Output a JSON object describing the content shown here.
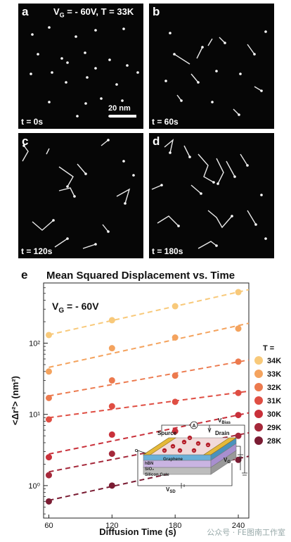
{
  "panels": [
    {
      "label": "a",
      "time": "t = 0s",
      "header": "V",
      "header_sub": "G",
      "header_rest": " = - 60V, T = 33K",
      "scale": "20 nm"
    },
    {
      "label": "b",
      "time": "t = 60s"
    },
    {
      "label": "c",
      "time": "t = 120s"
    },
    {
      "label": "d",
      "time": "t = 180s"
    }
  ],
  "chart_data": {
    "type": "scatter",
    "panel_label": "e",
    "title": "Mean Squared Displacement vs. Time",
    "annotation": "V = - 60V",
    "annotation_main": "V",
    "annotation_sub": "G",
    "annotation_rest": " = - 60V",
    "xlabel": "Diffusion Time (s)",
    "ylabel": "<Δr²> (nm²)",
    "x_ticks": [
      60,
      120,
      180,
      240
    ],
    "y_ticks": [
      "10⁰",
      "10¹",
      "10²"
    ],
    "y_scale": "log",
    "xlim": [
      55,
      250
    ],
    "ylim": [
      0.35,
      700
    ],
    "legend_title": "T =",
    "legend_position": "right",
    "x": [
      60,
      120,
      180,
      240
    ],
    "series": [
      {
        "name": "34K",
        "color": "#F8C97A",
        "values": [
          130,
          210,
          330,
          520
        ]
      },
      {
        "name": "33K",
        "color": "#F4A35E",
        "values": [
          40,
          85,
          120,
          160
        ]
      },
      {
        "name": "32K",
        "color": "#EC7A4E",
        "values": [
          17,
          30,
          35,
          55
        ]
      },
      {
        "name": "31K",
        "color": "#DF4E43",
        "values": [
          8.5,
          13,
          15,
          20
        ]
      },
      {
        "name": "30K",
        "color": "#C9303A",
        "values": [
          2.5,
          5.2,
          5.8,
          9.8
        ]
      },
      {
        "name": "29K",
        "color": "#A5283A",
        "values": [
          1.4,
          2.8,
          3.3,
          5
        ]
      },
      {
        "name": "28K",
        "color": "#7A1C33",
        "values": [
          0.6,
          1.0,
          1.6,
          2.3
        ]
      }
    ],
    "inset": {
      "source": "Source",
      "drain": "Drain",
      "vbias": "V",
      "vbias_sub": "Bias",
      "graphene": "Graphene",
      "hbn": "hBN",
      "sio2": "SiO₂",
      "gate": "Silicon Gate",
      "vg": "V",
      "vg_sub": "G",
      "vsd": "V",
      "vsd_sub": "SD",
      "ammeter": "A"
    }
  },
  "watermark": "公众号 · FE图南工作室"
}
